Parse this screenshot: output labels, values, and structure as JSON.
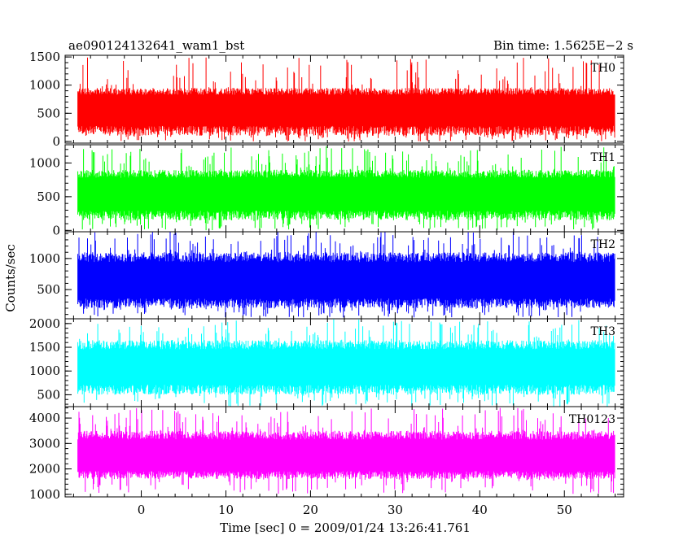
{
  "header": {
    "title": "ae090124132641_wam1_bst",
    "bin_time": "Bin time: 1.5625E−2 s"
  },
  "chart_data": {
    "type": "line",
    "layout": "stacked-panels",
    "title": "ae090124132641_wam1_bst",
    "subtitle": "Bin time: 1.5625E−2 s",
    "xlabel": "Time [sec] 0 = 2009/01/24 13:26:41.761",
    "ylabel": "Counts/sec",
    "xlim": [
      -9,
      57
    ],
    "x_start": -7.5,
    "x_end": 56,
    "bin_time": 0.015625,
    "x_ticks": [
      0,
      10,
      20,
      30,
      40,
      50
    ],
    "x_tick_labels": [
      "0",
      "10",
      "20",
      "30",
      "40",
      "50"
    ],
    "grid": false,
    "panels": [
      {
        "name": "TH0",
        "color": "#ff0000",
        "ylim": [
          -30,
          1530
        ],
        "y_ticks": [
          0,
          500,
          1000,
          1500
        ],
        "y_tick_labels": [
          "0",
          "500",
          "1000",
          "1500"
        ],
        "series_min": 0,
        "series_max": 1500,
        "series_core": [
          100,
          950
        ],
        "series_mean": 600
      },
      {
        "name": "TH1",
        "color": "#00ff00",
        "ylim": [
          -20,
          1270
        ],
        "y_ticks": [
          0,
          500,
          1000
        ],
        "y_tick_labels": [
          "0",
          "500",
          "1000"
        ],
        "series_min": 0,
        "series_max": 1250,
        "series_core": [
          150,
          900
        ],
        "series_mean": 560
      },
      {
        "name": "TH2",
        "color": "#0000ff",
        "ylim": [
          30,
          1430
        ],
        "y_ticks": [
          500,
          1000
        ],
        "y_tick_labels": [
          "500",
          "1000"
        ],
        "series_min": 50,
        "series_max": 1430,
        "series_core": [
          200,
          1100
        ],
        "series_mean": 650
      },
      {
        "name": "TH3",
        "color": "#00ffff",
        "ylim": [
          250,
          2100
        ],
        "y_ticks": [
          500,
          1000,
          1500,
          2000
        ],
        "y_tick_labels": [
          "500",
          "1000",
          "1500",
          "2000"
        ],
        "series_min": 250,
        "series_max": 2100,
        "series_core": [
          500,
          1650
        ],
        "series_mean": 1100
      },
      {
        "name": "TH0123",
        "color": "#ff00ff",
        "ylim": [
          900,
          4450
        ],
        "y_ticks": [
          1000,
          2000,
          3000,
          4000
        ],
        "y_tick_labels": [
          "1000",
          "2000",
          "3000",
          "4000"
        ],
        "series_min": 1000,
        "series_max": 4400,
        "series_core": [
          1600,
          3500
        ],
        "series_mean": 2500
      }
    ]
  }
}
